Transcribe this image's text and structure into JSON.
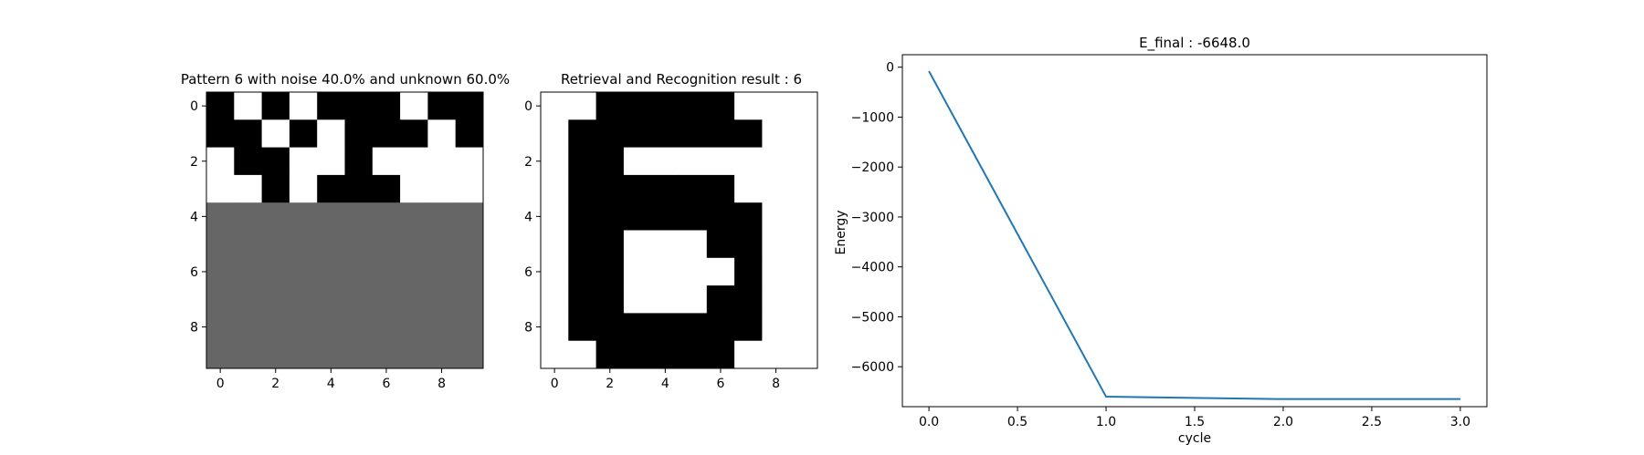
{
  "chart_data": [
    {
      "type": "heatmap",
      "title": "Pattern 6 with noise 40.0% and unknown 60.0%",
      "xticks": [
        "0",
        "2",
        "4",
        "6",
        "8"
      ],
      "yticks": [
        "0",
        "2",
        "4",
        "6",
        "8"
      ],
      "legend": "none",
      "value_colors": {
        "1": "#000000",
        "-1": "#ffffff",
        "0": "#666666"
      },
      "grid": [
        [
          1,
          -1,
          1,
          -1,
          1,
          1,
          1,
          -1,
          1,
          1
        ],
        [
          1,
          1,
          -1,
          1,
          -1,
          1,
          1,
          1,
          -1,
          1
        ],
        [
          -1,
          1,
          1,
          -1,
          -1,
          1,
          -1,
          -1,
          -1,
          -1
        ],
        [
          -1,
          -1,
          1,
          -1,
          1,
          1,
          1,
          -1,
          -1,
          -1
        ],
        [
          0,
          0,
          0,
          0,
          0,
          0,
          0,
          0,
          0,
          0
        ],
        [
          0,
          0,
          0,
          0,
          0,
          0,
          0,
          0,
          0,
          0
        ],
        [
          0,
          0,
          0,
          0,
          0,
          0,
          0,
          0,
          0,
          0
        ],
        [
          0,
          0,
          0,
          0,
          0,
          0,
          0,
          0,
          0,
          0
        ],
        [
          0,
          0,
          0,
          0,
          0,
          0,
          0,
          0,
          0,
          0
        ],
        [
          0,
          0,
          0,
          0,
          0,
          0,
          0,
          0,
          0,
          0
        ]
      ]
    },
    {
      "type": "heatmap",
      "title": "Retrieval and Recognition result : 6",
      "xticks": [
        "0",
        "2",
        "4",
        "6",
        "8"
      ],
      "yticks": [
        "0",
        "2",
        "4",
        "6",
        "8"
      ],
      "legend": "none",
      "value_colors": {
        "1": "#000000",
        "-1": "#ffffff"
      },
      "grid": [
        [
          -1,
          -1,
          1,
          1,
          1,
          1,
          1,
          -1,
          -1,
          -1
        ],
        [
          -1,
          1,
          1,
          1,
          1,
          1,
          1,
          1,
          -1,
          -1
        ],
        [
          -1,
          1,
          1,
          -1,
          -1,
          -1,
          -1,
          -1,
          -1,
          -1
        ],
        [
          -1,
          1,
          1,
          1,
          1,
          1,
          1,
          -1,
          -1,
          -1
        ],
        [
          -1,
          1,
          1,
          1,
          1,
          1,
          1,
          1,
          -1,
          -1
        ],
        [
          -1,
          1,
          1,
          -1,
          -1,
          -1,
          1,
          1,
          -1,
          -1
        ],
        [
          -1,
          1,
          1,
          -1,
          -1,
          -1,
          -1,
          1,
          -1,
          -1
        ],
        [
          -1,
          1,
          1,
          -1,
          -1,
          -1,
          1,
          1,
          -1,
          -1
        ],
        [
          -1,
          1,
          1,
          1,
          1,
          1,
          1,
          1,
          -1,
          -1
        ],
        [
          -1,
          -1,
          1,
          1,
          1,
          1,
          1,
          -1,
          -1,
          -1
        ]
      ]
    },
    {
      "type": "line",
      "title": "E_final : -6648.0",
      "xlabel": "cycle",
      "ylabel": "Energy",
      "xlim": [
        -0.15,
        3.15
      ],
      "ylim": [
        -6800,
        250
      ],
      "xticks": [
        "0.0",
        "0.5",
        "1.0",
        "1.5",
        "2.0",
        "2.5",
        "3.0"
      ],
      "yticks": [
        "0",
        "−1000",
        "−2000",
        "−3000",
        "−4000",
        "−5000",
        "−6000"
      ],
      "grid": false,
      "legend": "none",
      "series": [
        {
          "color": "#1f77b4",
          "x": [
            0,
            1,
            2,
            3
          ],
          "y": [
            -80,
            -6600,
            -6648,
            -6648
          ]
        }
      ]
    }
  ]
}
